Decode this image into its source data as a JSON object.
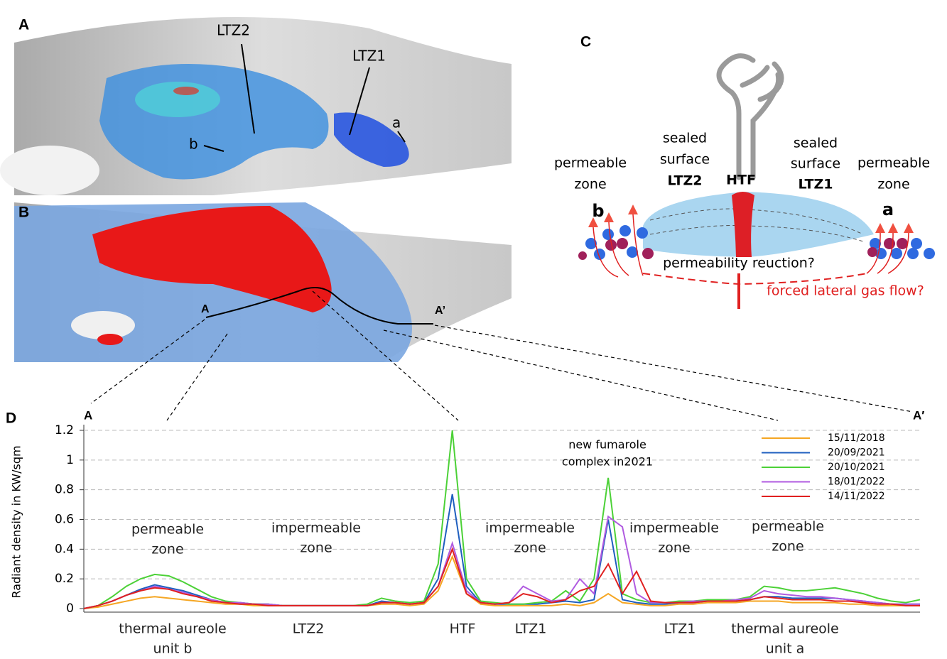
{
  "panel_a": {
    "label": "A",
    "annotations": [
      "LTZ2",
      "LTZ1",
      "a",
      "b"
    ]
  },
  "panel_b": {
    "label": "B",
    "profile_start": "A",
    "profile_end": "A’"
  },
  "panel_c": {
    "label": "C",
    "left_zone": [
      "permeable",
      "zone"
    ],
    "left_letter": "b",
    "left_seal": [
      "sealed",
      "surface",
      "LTZ2"
    ],
    "vent": "HTF",
    "right_seal": [
      "sealed",
      "surface",
      "LTZ1"
    ],
    "right_zone": [
      "permeable",
      "zone"
    ],
    "right_letter": "a",
    "question_1": "permeability reuction?",
    "question_2": "forced lateral gas flow?"
  },
  "chart_data": {
    "type": "line",
    "label": "D",
    "profile_start": "A",
    "profile_end": "A′",
    "y_label": "Radiant density in KW/sqm",
    "ylim": [
      0,
      1.2
    ],
    "yticks": [
      0,
      0.2,
      0.4,
      0.6,
      0.8,
      1,
      1.2
    ],
    "grid": true,
    "legend": "upper right",
    "annotations": [
      [
        "permeable",
        "zone"
      ],
      [
        "impermeable",
        "zone"
      ],
      [
        "impermeable",
        "zone"
      ],
      [
        "impermeable",
        "zone"
      ],
      [
        "permeable",
        "zone"
      ]
    ],
    "note": [
      "new fumarole",
      "complex in2021"
    ],
    "x_labels": [
      [
        "thermal aureole",
        "unit b"
      ],
      [
        "LTZ2"
      ],
      [
        "HTF"
      ],
      [
        "LTZ1"
      ],
      [
        "LTZ1"
      ],
      [
        "thermal aureole",
        "unit a"
      ]
    ],
    "series": [
      {
        "name": "15/11/2018",
        "color": "#f5a623",
        "values": [
          0,
          0.01,
          0.03,
          0.05,
          0.07,
          0.08,
          0.07,
          0.06,
          0.05,
          0.04,
          0.03,
          0.03,
          0.02,
          0.02,
          0.02,
          0.02,
          0.02,
          0.02,
          0.02,
          0.02,
          0.02,
          0.03,
          0.03,
          0.02,
          0.03,
          0.12,
          0.35,
          0.1,
          0.03,
          0.02,
          0.02,
          0.02,
          0.02,
          0.02,
          0.03,
          0.02,
          0.04,
          0.1,
          0.04,
          0.03,
          0.02,
          0.02,
          0.03,
          0.03,
          0.04,
          0.04,
          0.04,
          0.05,
          0.05,
          0.05,
          0.04,
          0.04,
          0.04,
          0.04,
          0.03,
          0.03,
          0.02,
          0.02,
          0.02,
          0.02
        ]
      },
      {
        "name": "20/09/2021",
        "color": "#1f5fbf",
        "values": [
          0,
          0.02,
          0.05,
          0.09,
          0.13,
          0.16,
          0.14,
          0.12,
          0.09,
          0.06,
          0.04,
          0.04,
          0.03,
          0.03,
          0.02,
          0.02,
          0.02,
          0.02,
          0.02,
          0.02,
          0.02,
          0.05,
          0.04,
          0.03,
          0.04,
          0.2,
          0.77,
          0.15,
          0.04,
          0.03,
          0.03,
          0.03,
          0.03,
          0.04,
          0.05,
          0.04,
          0.06,
          0.6,
          0.06,
          0.04,
          0.03,
          0.03,
          0.04,
          0.04,
          0.05,
          0.05,
          0.05,
          0.06,
          0.08,
          0.08,
          0.07,
          0.07,
          0.07,
          0.07,
          0.06,
          0.05,
          0.04,
          0.03,
          0.03,
          0.03
        ]
      },
      {
        "name": "20/10/2021",
        "color": "#4cd137",
        "values": [
          0,
          0.02,
          0.08,
          0.15,
          0.2,
          0.23,
          0.22,
          0.18,
          0.13,
          0.08,
          0.05,
          0.04,
          0.03,
          0.03,
          0.02,
          0.02,
          0.02,
          0.02,
          0.02,
          0.02,
          0.03,
          0.07,
          0.05,
          0.04,
          0.05,
          0.3,
          1.2,
          0.2,
          0.05,
          0.04,
          0.03,
          0.03,
          0.04,
          0.05,
          0.12,
          0.05,
          0.2,
          0.88,
          0.1,
          0.06,
          0.04,
          0.04,
          0.05,
          0.05,
          0.06,
          0.06,
          0.06,
          0.08,
          0.15,
          0.14,
          0.12,
          0.12,
          0.13,
          0.14,
          0.12,
          0.1,
          0.07,
          0.05,
          0.04,
          0.06
        ]
      },
      {
        "name": "18/01/2022",
        "color": "#b05be0",
        "values": [
          0,
          0.02,
          0.05,
          0.09,
          0.12,
          0.15,
          0.13,
          0.11,
          0.08,
          0.06,
          0.04,
          0.04,
          0.03,
          0.03,
          0.02,
          0.02,
          0.02,
          0.02,
          0.02,
          0.02,
          0.02,
          0.04,
          0.04,
          0.03,
          0.04,
          0.15,
          0.44,
          0.12,
          0.04,
          0.03,
          0.04,
          0.15,
          0.1,
          0.05,
          0.06,
          0.2,
          0.1,
          0.62,
          0.55,
          0.1,
          0.04,
          0.04,
          0.04,
          0.05,
          0.05,
          0.05,
          0.06,
          0.07,
          0.12,
          0.1,
          0.09,
          0.08,
          0.08,
          0.07,
          0.06,
          0.05,
          0.04,
          0.03,
          0.03,
          0.03
        ]
      },
      {
        "name": "14/11/2022",
        "color": "#e02020",
        "values": [
          0,
          0.02,
          0.05,
          0.09,
          0.12,
          0.14,
          0.13,
          0.1,
          0.08,
          0.05,
          0.04,
          0.03,
          0.03,
          0.02,
          0.02,
          0.02,
          0.02,
          0.02,
          0.02,
          0.02,
          0.02,
          0.04,
          0.04,
          0.03,
          0.04,
          0.15,
          0.4,
          0.1,
          0.04,
          0.03,
          0.04,
          0.1,
          0.08,
          0.04,
          0.06,
          0.12,
          0.15,
          0.3,
          0.1,
          0.25,
          0.05,
          0.04,
          0.04,
          0.04,
          0.05,
          0.05,
          0.05,
          0.06,
          0.08,
          0.07,
          0.06,
          0.06,
          0.06,
          0.05,
          0.05,
          0.04,
          0.03,
          0.03,
          0.02,
          0.02
        ]
      }
    ]
  }
}
